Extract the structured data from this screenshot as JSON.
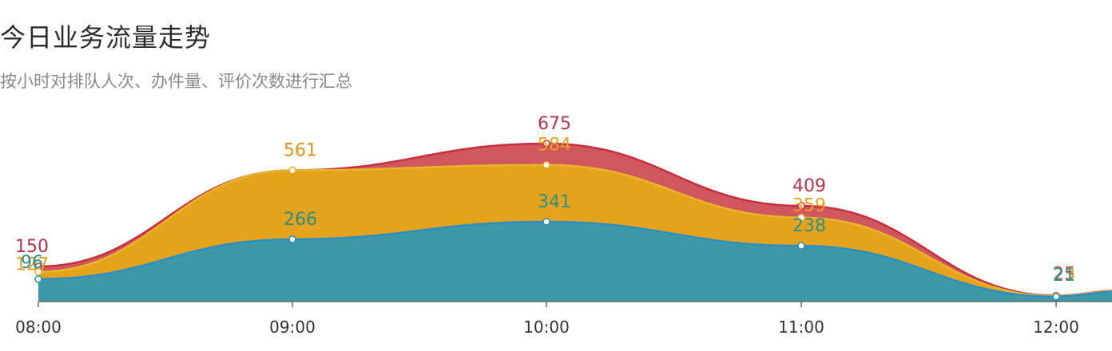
{
  "title": "今日业务流量走势",
  "subtitle": "按小时对排队人次、办件量、评价次数进行汇总",
  "chart_data": {
    "type": "area",
    "categories": [
      "08:00",
      "09:00",
      "10:00",
      "11:00",
      "12:00"
    ],
    "series": [
      {
        "values": [
          150,
          561,
          675,
          409,
          25
        ],
        "color": "#d0565f",
        "line": "#c62f3d",
        "label_color": "#b5334a"
      },
      {
        "values": [
          127,
          561,
          584,
          359,
          23
        ],
        "color": "#e4a21d",
        "line": "#e8b62a",
        "label_color": "#e7a020"
      },
      {
        "values": [
          96,
          266,
          341,
          238,
          21
        ],
        "color": "#3e98a6",
        "line": "#2a8fc2",
        "label_color": "#2d9086"
      }
    ],
    "ylim": [
      0,
      700
    ],
    "grid": false,
    "legend": "none"
  }
}
